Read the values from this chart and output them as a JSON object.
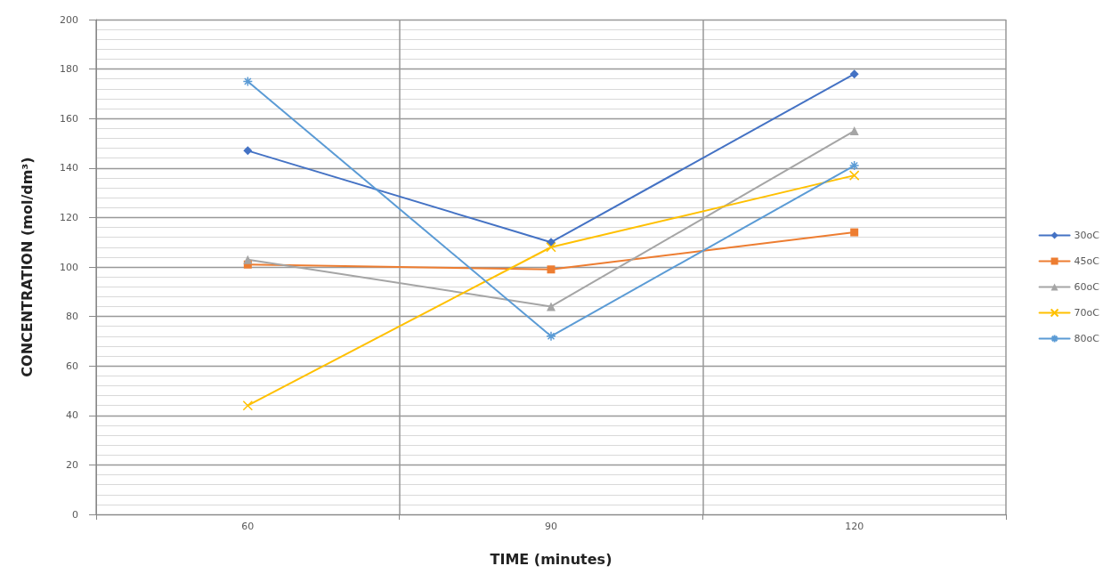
{
  "chart_data": {
    "type": "line",
    "xlabel": "TIME (minutes)",
    "ylabel": "CONCENTRATION (mol/dm³)",
    "categories": [
      "60",
      "90",
      "120"
    ],
    "ylim": [
      0,
      200
    ],
    "yticks": [
      0,
      20,
      40,
      60,
      80,
      100,
      120,
      140,
      160,
      180,
      200
    ],
    "grid": true,
    "legend": "right",
    "line_style": "solid",
    "series": [
      {
        "name": "30oC",
        "color": "#4472c4",
        "marker": "diamond",
        "values": [
          147,
          110,
          178
        ]
      },
      {
        "name": "45oC",
        "color": "#ed7d31",
        "marker": "square",
        "values": [
          101,
          99,
          114
        ]
      },
      {
        "name": "60oC",
        "color": "#a5a5a5",
        "marker": "triangle",
        "values": [
          103,
          84,
          155
        ]
      },
      {
        "name": "70oC",
        "color": "#ffc000",
        "marker": "cross",
        "values": [
          44,
          108,
          137
        ]
      },
      {
        "name": "80oC",
        "color": "#5b9bd5",
        "marker": "star",
        "values": [
          175,
          72,
          141
        ]
      }
    ]
  }
}
